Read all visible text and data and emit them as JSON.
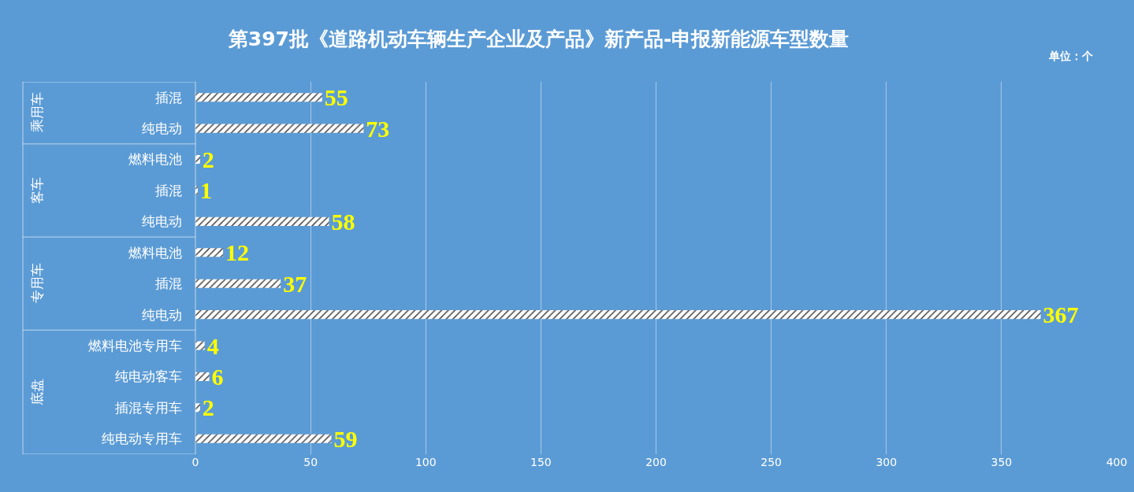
{
  "chart_data": {
    "type": "bar",
    "orientation": "horizontal",
    "title": "第397批《道路机动车辆生产企业及产品》新产品-申报新能源车型数量",
    "categories": [
      "插混",
      "纯电动",
      "燃料电池",
      "插混",
      "纯电动",
      "燃料电池",
      "插混",
      "纯电动",
      "燃料电池专用车",
      "纯电动客车",
      "插混专用车",
      "纯电动专用车"
    ],
    "values": [
      55,
      73,
      2,
      1,
      58,
      12,
      37,
      367,
      4,
      6,
      2,
      59
    ],
    "color": "#ffffff",
    "xlim": [
      0,
      400
    ],
    "xticks": [
      0,
      50,
      100,
      150,
      200,
      250,
      300,
      350,
      400
    ],
    "grid": "x",
    "data_labels": true,
    "annotations": [
      "单位：个",
      "乘用车",
      "客车",
      "专用车",
      "底盘"
    ]
  }
}
